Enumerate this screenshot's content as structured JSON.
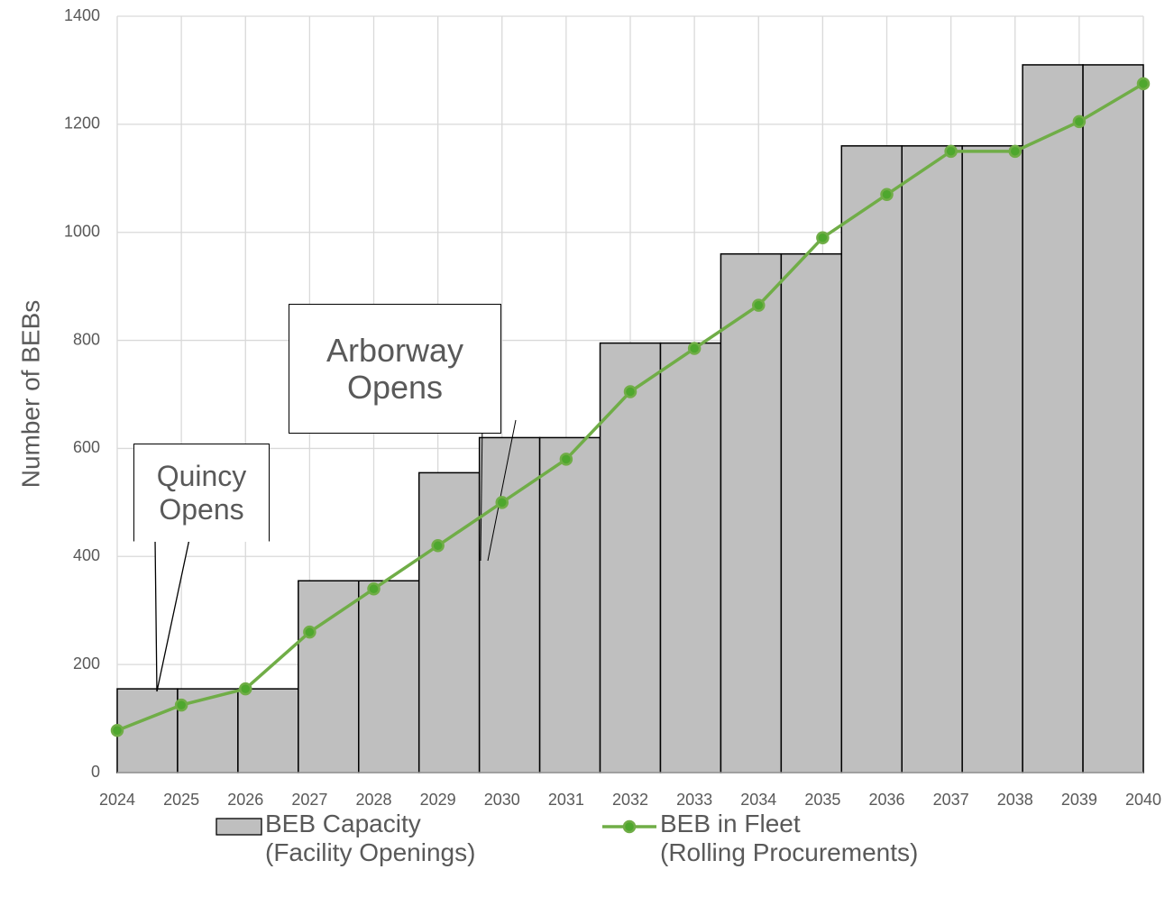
{
  "chart_data": {
    "type": "combo",
    "y_axis_label": "Number of BEBs",
    "categories": [
      "2024",
      "2025",
      "2026",
      "2027",
      "2028",
      "2029",
      "2030",
      "2031",
      "2032",
      "2033",
      "2034",
      "2035",
      "2036",
      "2037",
      "2038",
      "2039",
      "2040"
    ],
    "ylim": [
      0,
      1400
    ],
    "yticks": [
      0,
      200,
      400,
      600,
      800,
      1000,
      1200,
      1400
    ],
    "grid": true,
    "series": [
      {
        "name": "BEB Capacity\n(Facility Openings)",
        "type": "bar",
        "color": "#bfbfbf",
        "values": [
          155,
          155,
          155,
          355,
          355,
          555,
          620,
          620,
          795,
          795,
          960,
          960,
          1160,
          1160,
          1160,
          1310,
          1310
        ]
      },
      {
        "name": "BEB in Fleet\n(Rolling Procurements)",
        "type": "line",
        "color": "#70ad47",
        "values": [
          78,
          125,
          155,
          260,
          340,
          420,
          500,
          580,
          705,
          785,
          865,
          990,
          1070,
          1150,
          1150,
          1205,
          1275
        ]
      }
    ],
    "annotations": [
      "Quincy\nOpens",
      "Arborway\nOpens"
    ]
  }
}
